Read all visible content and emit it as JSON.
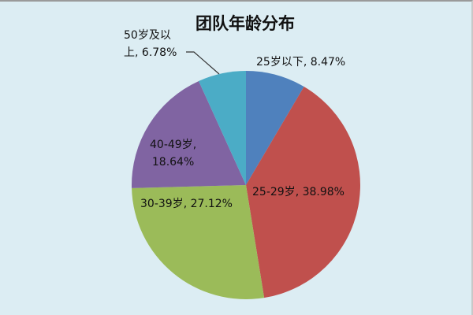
{
  "chart_data": {
    "type": "pie",
    "title": "团队年龄分布",
    "start_angle": "12 o'clock, clockwise",
    "legend": "none (data labels)",
    "slices": [
      {
        "label": "25岁以下",
        "value": 8.47,
        "value_text": "8.47%",
        "color": "#4f81bd"
      },
      {
        "label": "25-29岁",
        "value": 38.98,
        "value_text": "38.98%",
        "color": "#c0504d"
      },
      {
        "label": "30-39岁",
        "value": 27.12,
        "value_text": "27.12%",
        "color": "#9bbb59"
      },
      {
        "label": "40-49岁",
        "value": 18.64,
        "value_text": "18.64%",
        "color": "#8064a2"
      },
      {
        "label": "50岁及以上",
        "value": 6.78,
        "value_text": "6.78%",
        "color": "#4bacc6"
      }
    ]
  },
  "colors": {
    "background": "#dcedf3",
    "leader_line": "#333333"
  }
}
